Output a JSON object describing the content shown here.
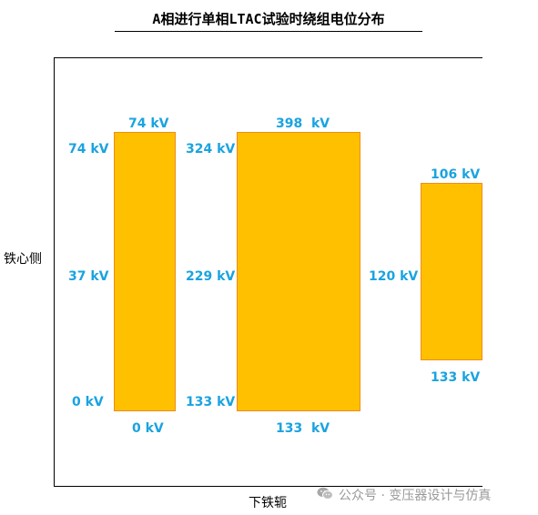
{
  "title": "A相进行单相LTAC试验时绕组电位分布",
  "side_labels": {
    "left": "铁心侧",
    "bottom": "下铁轭"
  },
  "bars": [
    {
      "name": "winding-1",
      "top_label": "74 kV",
      "bottom_label": "0 kV",
      "side_labels": [
        "74 kV",
        "37 kV",
        "0 kV"
      ]
    },
    {
      "name": "winding-2",
      "top_label": "398  kV",
      "bottom_label": "133  kV",
      "side_labels": [
        "324 kV",
        "229 kV",
        "133 kV"
      ]
    },
    {
      "name": "winding-3",
      "top_label": "106 kV",
      "bottom_label": "133 kV",
      "side_labels": [
        "120 kV"
      ]
    }
  ],
  "colors": {
    "bar_fill": "#ffc000",
    "bar_border": "#f08c1a",
    "label": "#1aa3e0"
  },
  "watermark": {
    "icon": "wechat-icon",
    "text": "公众号 · 变压器设计与仿真"
  }
}
